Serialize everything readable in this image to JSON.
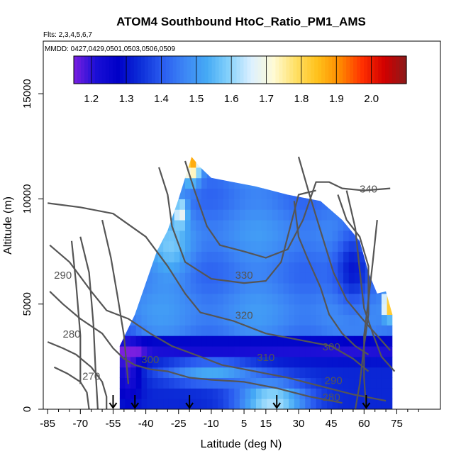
{
  "chart_data": {
    "type": "heatmap",
    "title": "ATOM4 Southbound HtoC_Ratio_PM1_AMS",
    "flights_note": "Flts: 2,3,4,5,6,7",
    "dates_note": "MMDD: 0427,0429,0501,0503,0506,0509",
    "xlabel": "Latitude (deg N)",
    "ylabel": "Altitude (m)",
    "xlim": [
      -87,
      95
    ],
    "ylim": [
      0,
      17500
    ],
    "x_ticks": [
      -85,
      -70,
      -55,
      -40,
      -25,
      -10,
      5,
      15,
      30,
      45,
      60,
      75
    ],
    "x_minor_ticks": [
      -80,
      -75,
      -65,
      -60,
      -50,
      -45,
      -35,
      -30,
      -20,
      -15,
      -5,
      0,
      10,
      20,
      25,
      35,
      40,
      50,
      55,
      65,
      70,
      80,
      85
    ],
    "y_ticks": [
      0,
      5000,
      10000,
      15000
    ],
    "colorbar": {
      "min": 1.15,
      "max": 2.1,
      "tick_values": [
        1.2,
        1.3,
        1.4,
        1.5,
        1.6,
        1.7,
        1.8,
        1.9,
        2.0
      ],
      "tick_labels": [
        "1.2",
        "1.3",
        "1.4",
        "1.5",
        "1.6",
        "1.7",
        "1.8",
        "1.9",
        "2.0"
      ],
      "colors": [
        "#7a1fe0",
        "#1a0fd6",
        "#0000c8",
        "#0d2ed8",
        "#2a5cf0",
        "#3d86f5",
        "#45aaf5",
        "#86d2fb",
        "#dcf0ff",
        "#fffbd6",
        "#ffe066",
        "#ffc11a",
        "#ff8a00",
        "#ff3000",
        "#d20000",
        "#8a1a1a"
      ]
    },
    "data_extent": {
      "lat_range": [
        -52,
        73
      ],
      "top_profile": [
        [
          -52,
          3000
        ],
        [
          -45,
          4500
        ],
        [
          -40,
          6000
        ],
        [
          -35,
          7500
        ],
        [
          -30,
          8500
        ],
        [
          -25,
          10000
        ],
        [
          -22,
          11000
        ],
        [
          -19,
          12000
        ],
        [
          -15,
          11500
        ],
        [
          -10,
          11000
        ],
        [
          0,
          10800
        ],
        [
          10,
          10600
        ],
        [
          25,
          10200
        ],
        [
          40,
          9900
        ],
        [
          50,
          9000
        ],
        [
          58,
          8000
        ],
        [
          62,
          6500
        ],
        [
          66,
          5500
        ],
        [
          70,
          5600
        ],
        [
          73,
          4500
        ]
      ]
    },
    "pressure_markers_lat": [
      -55,
      -45,
      -20,
      20,
      61
    ],
    "contour_labels": [
      {
        "text": "340",
        "lat": 62,
        "alt": 10300
      },
      {
        "text": "330",
        "lat": 5,
        "alt": 6200
      },
      {
        "text": "320",
        "lat": 5,
        "alt": 4300
      },
      {
        "text": "310",
        "lat": 15,
        "alt": 2300
      },
      {
        "text": "300",
        "lat": -38,
        "alt": 2200
      },
      {
        "text": "300",
        "lat": 45,
        "alt": 2800
      },
      {
        "text": "290",
        "lat": -78,
        "alt": 6200
      },
      {
        "text": "290",
        "lat": 46,
        "alt": 1200
      },
      {
        "text": "280",
        "lat": -74,
        "alt": 3400
      },
      {
        "text": "280",
        "lat": 45,
        "alt": 400
      },
      {
        "text": "270",
        "lat": -65,
        "alt": 1400
      }
    ]
  }
}
